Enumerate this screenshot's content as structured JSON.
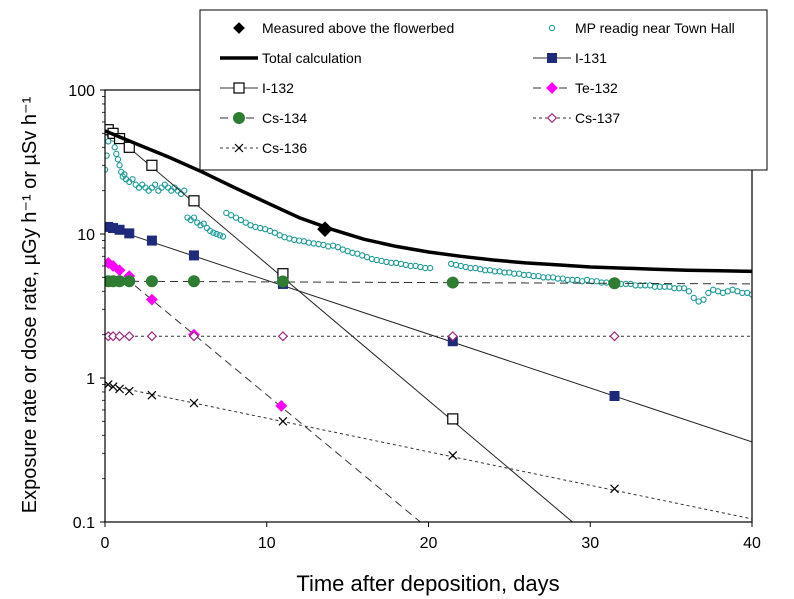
{
  "chart_data": {
    "type": "scatter",
    "xlabel": "Time after deposition, days",
    "ylabel": "Exposure rate or dose rate, µGy h⁻¹ or µSv h⁻¹",
    "xlim": [
      0,
      40
    ],
    "ylim": [
      0.1,
      100
    ],
    "yscale": "log",
    "x_ticks": [
      "0",
      "10",
      "20",
      "30",
      "40"
    ],
    "y_ticks": [
      "0.1",
      "1",
      "10",
      "100"
    ],
    "grid": false,
    "legend_position": "top",
    "series": [
      {
        "name": "Measured above the flowerbed",
        "style": "marker",
        "color": "#000000",
        "marker": "diamond-filled",
        "line": "none",
        "points": [
          [
            13.6,
            10.8
          ]
        ]
      },
      {
        "name": "MP readig near Town Hall",
        "style": "marker",
        "color": "#1a9a96",
        "marker": "circle-open",
        "line": "none",
        "points": [
          [
            0.0,
            28
          ],
          [
            0.1,
            35
          ],
          [
            0.2,
            44
          ],
          [
            0.3,
            48
          ],
          [
            0.4,
            52
          ],
          [
            0.5,
            46
          ],
          [
            0.6,
            40
          ],
          [
            0.7,
            36
          ],
          [
            0.8,
            33
          ],
          [
            0.9,
            30
          ],
          [
            1.0,
            27
          ],
          [
            1.1,
            25
          ],
          [
            1.2,
            26
          ],
          [
            1.3,
            24
          ],
          [
            1.5,
            23
          ],
          [
            1.7,
            24
          ],
          [
            1.9,
            22
          ],
          [
            2.1,
            21
          ],
          [
            2.3,
            22
          ],
          [
            2.5,
            21
          ],
          [
            2.7,
            20
          ],
          [
            2.9,
            21
          ],
          [
            3.1,
            22
          ],
          [
            3.3,
            20
          ],
          [
            3.5,
            21
          ],
          [
            3.7,
            22
          ],
          [
            3.9,
            21
          ],
          [
            4.1,
            20
          ],
          [
            4.3,
            21
          ],
          [
            4.5,
            20
          ],
          [
            4.7,
            19
          ],
          [
            4.9,
            20
          ],
          [
            5.1,
            13
          ],
          [
            5.3,
            12.5
          ],
          [
            5.5,
            13
          ],
          [
            5.7,
            12
          ],
          [
            5.9,
            11.5
          ],
          [
            6.1,
            11.8
          ],
          [
            6.3,
            11
          ],
          [
            6.5,
            10.5
          ],
          [
            6.7,
            10.2
          ],
          [
            6.9,
            10
          ],
          [
            7.1,
            9.8
          ],
          [
            7.3,
            9.6
          ],
          [
            7.5,
            14
          ],
          [
            7.8,
            13.5
          ],
          [
            8.1,
            13
          ],
          [
            8.4,
            12.5
          ],
          [
            8.7,
            12
          ],
          [
            9.0,
            11.5
          ],
          [
            9.3,
            11.2
          ],
          [
            9.6,
            11
          ],
          [
            9.9,
            10.8
          ],
          [
            10.2,
            10.5
          ],
          [
            10.5,
            10.2
          ],
          [
            10.8,
            9.8
          ],
          [
            11.1,
            9.5
          ],
          [
            11.4,
            9.3
          ],
          [
            11.7,
            9.1
          ],
          [
            12.0,
            9.0
          ],
          [
            12.3,
            8.9
          ],
          [
            12.6,
            8.7
          ],
          [
            12.9,
            8.6
          ],
          [
            13.2,
            8.5
          ],
          [
            13.5,
            8.4
          ],
          [
            13.8,
            8.2
          ],
          [
            14.1,
            8.3
          ],
          [
            14.4,
            8.1
          ],
          [
            14.7,
            7.8
          ],
          [
            15.0,
            7.6
          ],
          [
            15.3,
            7.4
          ],
          [
            15.6,
            7.3
          ],
          [
            15.9,
            7.1
          ],
          [
            16.2,
            6.9
          ],
          [
            16.5,
            6.7
          ],
          [
            16.8,
            6.6
          ],
          [
            17.1,
            6.5
          ],
          [
            17.4,
            6.4
          ],
          [
            17.7,
            6.3
          ],
          [
            18.0,
            6.3
          ],
          [
            18.3,
            6.2
          ],
          [
            18.6,
            6.1
          ],
          [
            18.9,
            6.0
          ],
          [
            19.2,
            6.0
          ],
          [
            19.5,
            5.9
          ],
          [
            19.8,
            5.8
          ],
          [
            20.1,
            5.8
          ],
          [
            21.4,
            6.2
          ],
          [
            21.7,
            6.1
          ],
          [
            22.0,
            6.0
          ],
          [
            22.3,
            5.9
          ],
          [
            22.6,
            5.8
          ],
          [
            22.9,
            5.8
          ],
          [
            23.2,
            5.7
          ],
          [
            23.5,
            5.6
          ],
          [
            23.8,
            5.6
          ],
          [
            24.1,
            5.5
          ],
          [
            24.4,
            5.5
          ],
          [
            24.7,
            5.4
          ],
          [
            25.0,
            5.4
          ],
          [
            25.3,
            5.3
          ],
          [
            25.6,
            5.3
          ],
          [
            25.9,
            5.2
          ],
          [
            26.2,
            5.2
          ],
          [
            26.5,
            5.1
          ],
          [
            26.8,
            5.1
          ],
          [
            27.1,
            5.0
          ],
          [
            27.4,
            5.0
          ],
          [
            27.7,
            5.0
          ],
          [
            28.0,
            4.9
          ],
          [
            28.3,
            4.9
          ],
          [
            28.6,
            4.8
          ],
          [
            28.9,
            4.8
          ],
          [
            29.2,
            4.8
          ],
          [
            29.5,
            4.7
          ],
          [
            29.8,
            4.8
          ],
          [
            30.1,
            4.7
          ],
          [
            30.4,
            4.7
          ],
          [
            30.7,
            4.6
          ],
          [
            31.0,
            4.6
          ],
          [
            31.3,
            4.6
          ],
          [
            31.6,
            4.5
          ],
          [
            31.9,
            4.5
          ],
          [
            32.2,
            4.5
          ],
          [
            32.5,
            4.5
          ],
          [
            32.8,
            4.4
          ],
          [
            33.1,
            4.4
          ],
          [
            33.4,
            4.4
          ],
          [
            33.7,
            4.4
          ],
          [
            34.0,
            4.3
          ],
          [
            34.3,
            4.3
          ],
          [
            34.6,
            4.3
          ],
          [
            34.9,
            4.3
          ],
          [
            35.2,
            4.2
          ],
          [
            35.5,
            4.2
          ],
          [
            35.8,
            4.2
          ],
          [
            36.1,
            4.0
          ],
          [
            36.4,
            3.6
          ],
          [
            36.7,
            3.4
          ],
          [
            37.0,
            3.5
          ],
          [
            37.3,
            3.9
          ],
          [
            37.6,
            4.1
          ],
          [
            37.9,
            4.0
          ],
          [
            38.2,
            3.9
          ],
          [
            38.5,
            4.0
          ],
          [
            38.8,
            4.1
          ],
          [
            39.1,
            4.0
          ],
          [
            39.4,
            3.9
          ],
          [
            39.7,
            3.9
          ],
          [
            40.0,
            3.8
          ]
        ]
      },
      {
        "name": "Total calculation",
        "style": "line",
        "color": "#000000",
        "marker": "none",
        "line": "thick-solid",
        "points": [
          [
            0,
            52
          ],
          [
            2,
            42
          ],
          [
            4,
            34
          ],
          [
            6,
            27
          ],
          [
            8,
            21
          ],
          [
            10,
            16.5
          ],
          [
            12,
            13
          ],
          [
            14,
            10.8
          ],
          [
            16,
            9.2
          ],
          [
            18,
            8.2
          ],
          [
            20,
            7.5
          ],
          [
            22,
            7.0
          ],
          [
            24,
            6.6
          ],
          [
            26,
            6.3
          ],
          [
            28,
            6.1
          ],
          [
            30,
            5.9
          ],
          [
            32,
            5.8
          ],
          [
            34,
            5.7
          ],
          [
            36,
            5.6
          ],
          [
            38,
            5.55
          ],
          [
            40,
            5.5
          ]
        ]
      },
      {
        "name": "I-131",
        "style": "marker-line",
        "color": "#1f2a7a",
        "marker": "square-filled",
        "line": "solid-thin",
        "points": [
          [
            0.2,
            11.2
          ],
          [
            0.5,
            11.0
          ],
          [
            0.9,
            10.7
          ],
          [
            1.5,
            10.1
          ],
          [
            2.9,
            9.0
          ],
          [
            5.5,
            7.1
          ],
          [
            11.0,
            4.5
          ],
          [
            21.5,
            1.8
          ],
          [
            31.5,
            0.75
          ]
        ],
        "line_points": [
          [
            0,
            11.3
          ],
          [
            40,
            0.36
          ]
        ]
      },
      {
        "name": "I-132",
        "style": "marker-line",
        "color": "#000000",
        "marker": "square-open",
        "line": "solid-thin",
        "points": [
          [
            0.2,
            53
          ],
          [
            0.5,
            50
          ],
          [
            0.9,
            46
          ],
          [
            1.5,
            40
          ],
          [
            2.9,
            30
          ],
          [
            5.5,
            17
          ],
          [
            11.0,
            5.3
          ],
          [
            21.5,
            0.52
          ]
        ],
        "line_points": [
          [
            0,
            55
          ],
          [
            28.9,
            0.1
          ]
        ]
      },
      {
        "name": "Te-132",
        "style": "marker-line",
        "color": "#ff00ff",
        "marker": "diamond-filled",
        "line": "dashed",
        "points": [
          [
            0.2,
            6.3
          ],
          [
            0.5,
            6.0
          ],
          [
            0.9,
            5.6
          ],
          [
            1.5,
            5.1
          ],
          [
            2.9,
            3.5
          ],
          [
            5.5,
            2.0
          ],
          [
            10.9,
            0.64
          ]
        ],
        "line_points": [
          [
            0,
            6.5
          ],
          [
            19.5,
            0.1
          ]
        ]
      },
      {
        "name": "Cs-134",
        "style": "marker-line",
        "color": "#2e7d32",
        "marker": "circle-filled",
        "line": "dashed",
        "points": [
          [
            0.2,
            4.7
          ],
          [
            0.5,
            4.7
          ],
          [
            0.9,
            4.7
          ],
          [
            1.5,
            4.7
          ],
          [
            2.9,
            4.7
          ],
          [
            5.5,
            4.7
          ],
          [
            11.0,
            4.68
          ],
          [
            21.5,
            4.6
          ],
          [
            31.5,
            4.55
          ]
        ],
        "line_points": [
          [
            0,
            4.7
          ],
          [
            40,
            4.5
          ]
        ]
      },
      {
        "name": "Cs-137",
        "style": "marker-line",
        "color": "#9a2b7d",
        "marker": "diamond-open",
        "line": "dotted",
        "points": [
          [
            0.2,
            1.95
          ],
          [
            0.5,
            1.95
          ],
          [
            0.9,
            1.95
          ],
          [
            1.5,
            1.95
          ],
          [
            2.9,
            1.95
          ],
          [
            5.5,
            1.95
          ],
          [
            11.0,
            1.95
          ],
          [
            21.5,
            1.95
          ],
          [
            31.5,
            1.95
          ]
        ],
        "line_points": [
          [
            0,
            1.95
          ],
          [
            40,
            1.95
          ]
        ]
      },
      {
        "name": "Cs-136",
        "style": "marker-line",
        "color": "#000000",
        "marker": "x",
        "line": "dotted",
        "points": [
          [
            0.2,
            0.9
          ],
          [
            0.5,
            0.87
          ],
          [
            0.9,
            0.84
          ],
          [
            1.5,
            0.81
          ],
          [
            2.9,
            0.76
          ],
          [
            5.5,
            0.67
          ],
          [
            11.0,
            0.5
          ],
          [
            21.5,
            0.29
          ],
          [
            31.5,
            0.17
          ]
        ],
        "line_points": [
          [
            0,
            0.9
          ],
          [
            40,
            0.105
          ]
        ]
      }
    ]
  }
}
